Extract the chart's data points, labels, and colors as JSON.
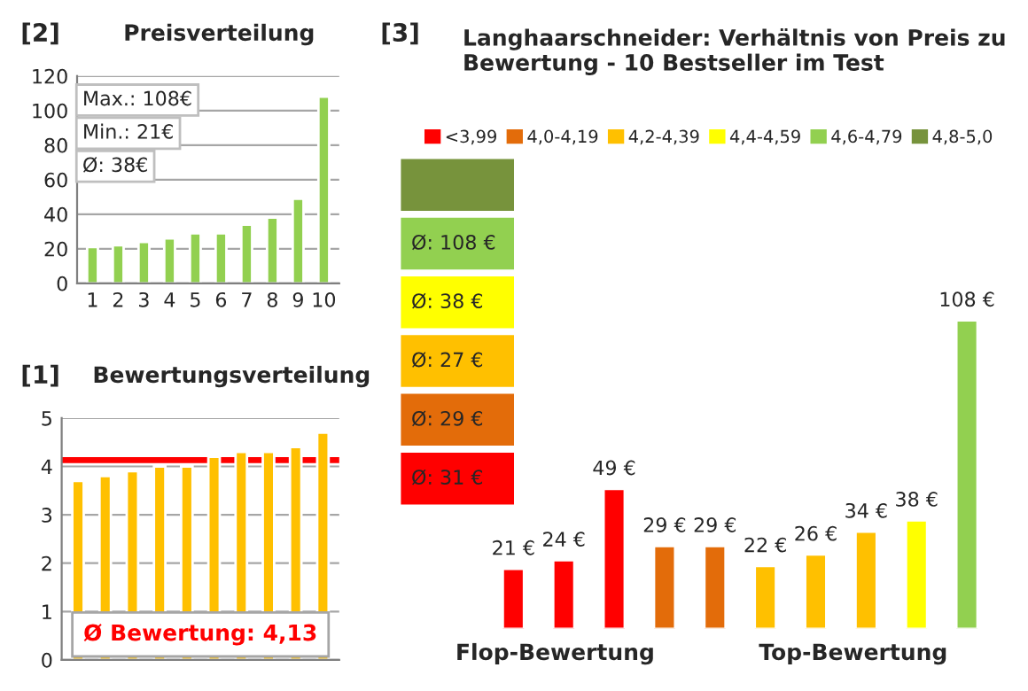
{
  "chart_data": [
    {
      "type": "bar",
      "title": "Preisverteilung",
      "annotations": [
        "[2]",
        "Max.: 108€",
        "Min.: 21€",
        "Ø: 38€"
      ],
      "categories": [
        "1",
        "2",
        "3",
        "4",
        "5",
        "6",
        "7",
        "8",
        "9",
        "10"
      ],
      "values": [
        21,
        22,
        24,
        26,
        29,
        29,
        34,
        38,
        49,
        108
      ],
      "color": "#92d050",
      "ylim": [
        0,
        120
      ],
      "yticks": [
        0,
        20,
        40,
        60,
        80,
        100,
        120
      ],
      "grid": "y"
    },
    {
      "type": "bar",
      "title": "Bewertungsverteilung",
      "annotations": [
        "[1]"
      ],
      "categories": [
        null,
        null,
        null,
        null,
        null,
        null,
        null,
        null,
        null,
        null
      ],
      "values": [
        3.7,
        3.8,
        3.9,
        4.0,
        4.0,
        4.2,
        4.3,
        4.3,
        4.4,
        4.7
      ],
      "color": "#ffc000",
      "ylim": [
        0,
        5
      ],
      "yticks": [
        0,
        1,
        2,
        3,
        4,
        5
      ],
      "grid": "y",
      "tick_labels": "y",
      "ref_lines": [
        {
          "axis": "y",
          "value": 4.13,
          "label": "Ø Bewertung: 4,13",
          "color": "#ff0000"
        }
      ]
    },
    {
      "type": "bar",
      "title": "Langhaarschneider: Verhältnis von Preis zu Bewertung - 10 Bestseller im Test",
      "annotations": [
        "[3]",
        "Ø: 108 €",
        "Ø: 38 €",
        "Ø: 27 €",
        "Ø: 29 €",
        "Ø: 31 €",
        "Flop-Bewertung",
        "Top-Bewertung"
      ],
      "categories": [
        null,
        null,
        null,
        null,
        null,
        null,
        null,
        null,
        null,
        null
      ],
      "stacked": true,
      "legend": "top",
      "tick_labels": false,
      "series": [
        {
          "name": "<3,99",
          "color": "#ff0000",
          "values": [
            21,
            24,
            49,
            null,
            null,
            null,
            null,
            null,
            null,
            null
          ],
          "value_labels": [
            "21 €",
            "24 €",
            "49 €",
            null,
            null,
            null,
            null,
            null,
            null,
            null
          ]
        },
        {
          "name": "4,0-4,19",
          "color": "#e36c0a",
          "values": [
            null,
            null,
            null,
            29,
            29,
            null,
            null,
            null,
            null,
            null
          ],
          "value_labels": [
            null,
            null,
            null,
            "29 €",
            "29 €",
            null,
            null,
            null,
            null,
            null
          ]
        },
        {
          "name": "4,2-4,39",
          "color": "#ffc000",
          "values": [
            null,
            null,
            null,
            null,
            null,
            22,
            26,
            34,
            null,
            null
          ],
          "value_labels": [
            null,
            null,
            null,
            null,
            null,
            "22 €",
            "26 €",
            "34 €",
            null,
            null
          ]
        },
        {
          "name": "4,4-4,59",
          "color": "#ffff00",
          "values": [
            null,
            null,
            null,
            null,
            null,
            null,
            null,
            null,
            38,
            null
          ],
          "value_labels": [
            null,
            null,
            null,
            null,
            null,
            null,
            null,
            null,
            "38 €",
            null
          ]
        },
        {
          "name": "4,6-4,79",
          "color": "#92d050",
          "values": [
            null,
            null,
            null,
            null,
            null,
            null,
            null,
            null,
            null,
            108
          ],
          "value_labels": [
            null,
            null,
            null,
            null,
            null,
            null,
            null,
            null,
            null,
            "108 €"
          ]
        },
        {
          "name": "4,8-5,0",
          "color": "#77933c",
          "values": [
            null,
            null,
            null,
            null,
            null,
            null,
            null,
            null,
            null,
            null
          ]
        }
      ]
    }
  ]
}
